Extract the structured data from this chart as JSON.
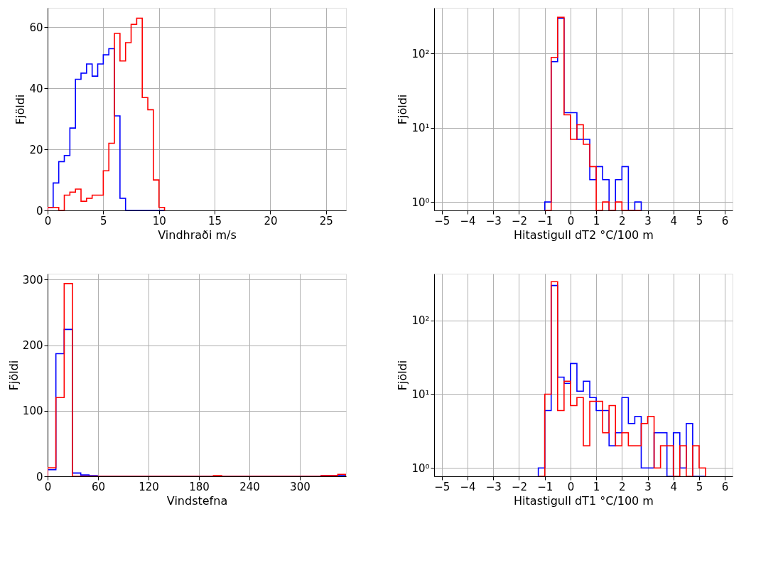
{
  "chart_data": [
    {
      "type": "histogram",
      "xlabel": "Vindhraði m/s",
      "ylabel": "Fjöldi",
      "bins": [
        0,
        0.5,
        1,
        1.5,
        2,
        2.5,
        3,
        3.5,
        4,
        4.5,
        5,
        5.5,
        6,
        6.5,
        7,
        7.5,
        8,
        8.5,
        9,
        9.5,
        10,
        10.5
      ],
      "xlim": [
        0,
        26.8
      ],
      "xticks": [
        0,
        5,
        10,
        15,
        20,
        25
      ],
      "ylim": [
        0,
        66.4
      ],
      "yticks": [
        0,
        20,
        40,
        60
      ],
      "grid": true,
      "series": [
        {
          "color": "#0000ff",
          "values": [
            1,
            9,
            16,
            18,
            27,
            43,
            45,
            48,
            44,
            48,
            51,
            53,
            31,
            4,
            0,
            0,
            0,
            0,
            0,
            0,
            0
          ]
        },
        {
          "color": "#ff0000",
          "values": [
            1,
            1,
            0,
            5,
            6,
            7,
            3,
            4,
            5,
            5,
            13,
            22,
            58,
            49,
            55,
            61,
            63,
            37,
            33,
            10,
            1
          ]
        }
      ]
    },
    {
      "type": "histogram",
      "xlabel": "Hitastigull dT2 °C/100 m",
      "ylabel": "Fjöldi",
      "log": true,
      "bins": [
        -1,
        -0.75,
        -0.5,
        -0.25,
        0,
        0.25,
        0.5,
        0.75,
        1,
        1.25,
        1.5,
        1.75,
        2,
        2.25,
        2.5,
        2.75
      ],
      "xlim": [
        -5.3,
        6.3
      ],
      "xticks": [
        -5,
        -4,
        -3,
        -2,
        -1,
        0,
        1,
        2,
        3,
        4,
        5,
        6
      ],
      "ylim": [
        0.77,
        415
      ],
      "yticks": [
        {
          "value": 1,
          "label": "10⁰"
        },
        {
          "value": 10,
          "label": "10¹"
        },
        {
          "value": 100,
          "label": "10²"
        }
      ],
      "grid": true,
      "series": [
        {
          "color": "#0000ff",
          "values": [
            1,
            78,
            300,
            16,
            16,
            7,
            7,
            2,
            3,
            2,
            null,
            2,
            3,
            null,
            1
          ]
        },
        {
          "color": "#ff0000",
          "values": [
            null,
            89,
            310,
            15,
            7,
            11,
            6,
            3,
            null,
            1,
            null,
            1,
            null,
            null,
            null
          ]
        }
      ]
    },
    {
      "type": "histogram",
      "xlabel": "Vindstefna",
      "ylabel": "Fjöldi",
      "bins": [
        0,
        9.86,
        19.72,
        29.58,
        39.44,
        49.31,
        59.17,
        69.03,
        78.89,
        88.75,
        98.61,
        108.47,
        118.33,
        128.19,
        138.06,
        147.92,
        157.78,
        167.64,
        177.5,
        187.36,
        197.22,
        207.08,
        216.94,
        226.81,
        236.67,
        246.53,
        256.39,
        266.25,
        276.11,
        285.97,
        295.83,
        305.69,
        315.56,
        325.42,
        335.28,
        345.14,
        355
      ],
      "xlim": [
        0,
        355
      ],
      "xticks": [
        0,
        60,
        120,
        180,
        240,
        300
      ],
      "ylim": [
        0,
        309
      ],
      "yticks": [
        0,
        100,
        200,
        300
      ],
      "grid": true,
      "series": [
        {
          "color": "#0000ff",
          "values": [
            10,
            187,
            224,
            5,
            2,
            1,
            0,
            0,
            0,
            0,
            0,
            0,
            0,
            0,
            0,
            0,
            0,
            0,
            0,
            0,
            0,
            0,
            0,
            0,
            0,
            0,
            0,
            0,
            0,
            0,
            0,
            0,
            0,
            1,
            1,
            1
          ]
        },
        {
          "color": "#ff0000",
          "values": [
            13,
            120,
            294,
            0,
            0,
            0,
            0,
            0,
            0,
            0,
            0,
            0,
            0,
            0,
            0,
            0,
            0,
            0,
            0,
            0,
            1,
            0,
            0,
            0,
            0,
            0,
            0,
            0,
            0,
            0,
            0,
            0,
            0,
            1,
            1,
            3
          ]
        }
      ]
    },
    {
      "type": "histogram",
      "xlabel": "Hitastigull dT1 °C/100 m",
      "ylabel": "Fjöldi",
      "log": true,
      "bins": [
        -1.25,
        -1,
        -0.75,
        -0.5,
        -0.25,
        0,
        0.25,
        0.5,
        0.75,
        1,
        1.25,
        1.5,
        1.75,
        2,
        2.25,
        2.5,
        2.75,
        3,
        3.25,
        3.5,
        3.75,
        4,
        4.25,
        4.5,
        4.75,
        5,
        5.25
      ],
      "xlim": [
        -5.3,
        6.3
      ],
      "xticks": [
        -5,
        -4,
        -3,
        -2,
        -1,
        0,
        1,
        2,
        3,
        4,
        5,
        6
      ],
      "ylim": [
        0.77,
        430
      ],
      "yticks": [
        {
          "value": 1,
          "label": "10⁰"
        },
        {
          "value": 10,
          "label": "10¹"
        },
        {
          "value": 100,
          "label": "10²"
        }
      ],
      "grid": true,
      "series": [
        {
          "color": "#0000ff",
          "values": [
            1,
            6,
            297,
            17,
            14,
            26,
            11,
            15,
            9,
            6,
            6,
            2,
            3,
            9,
            4,
            5,
            1,
            1,
            3,
            3,
            null,
            3,
            1,
            4,
            null,
            null
          ]
        },
        {
          "color": "#ff0000",
          "values": [
            null,
            10,
            335,
            6,
            15,
            7,
            9,
            2,
            8,
            8,
            3,
            7,
            2,
            3,
            2,
            2,
            4,
            5,
            1,
            2,
            2,
            null,
            2,
            null,
            2,
            1
          ]
        }
      ]
    }
  ]
}
